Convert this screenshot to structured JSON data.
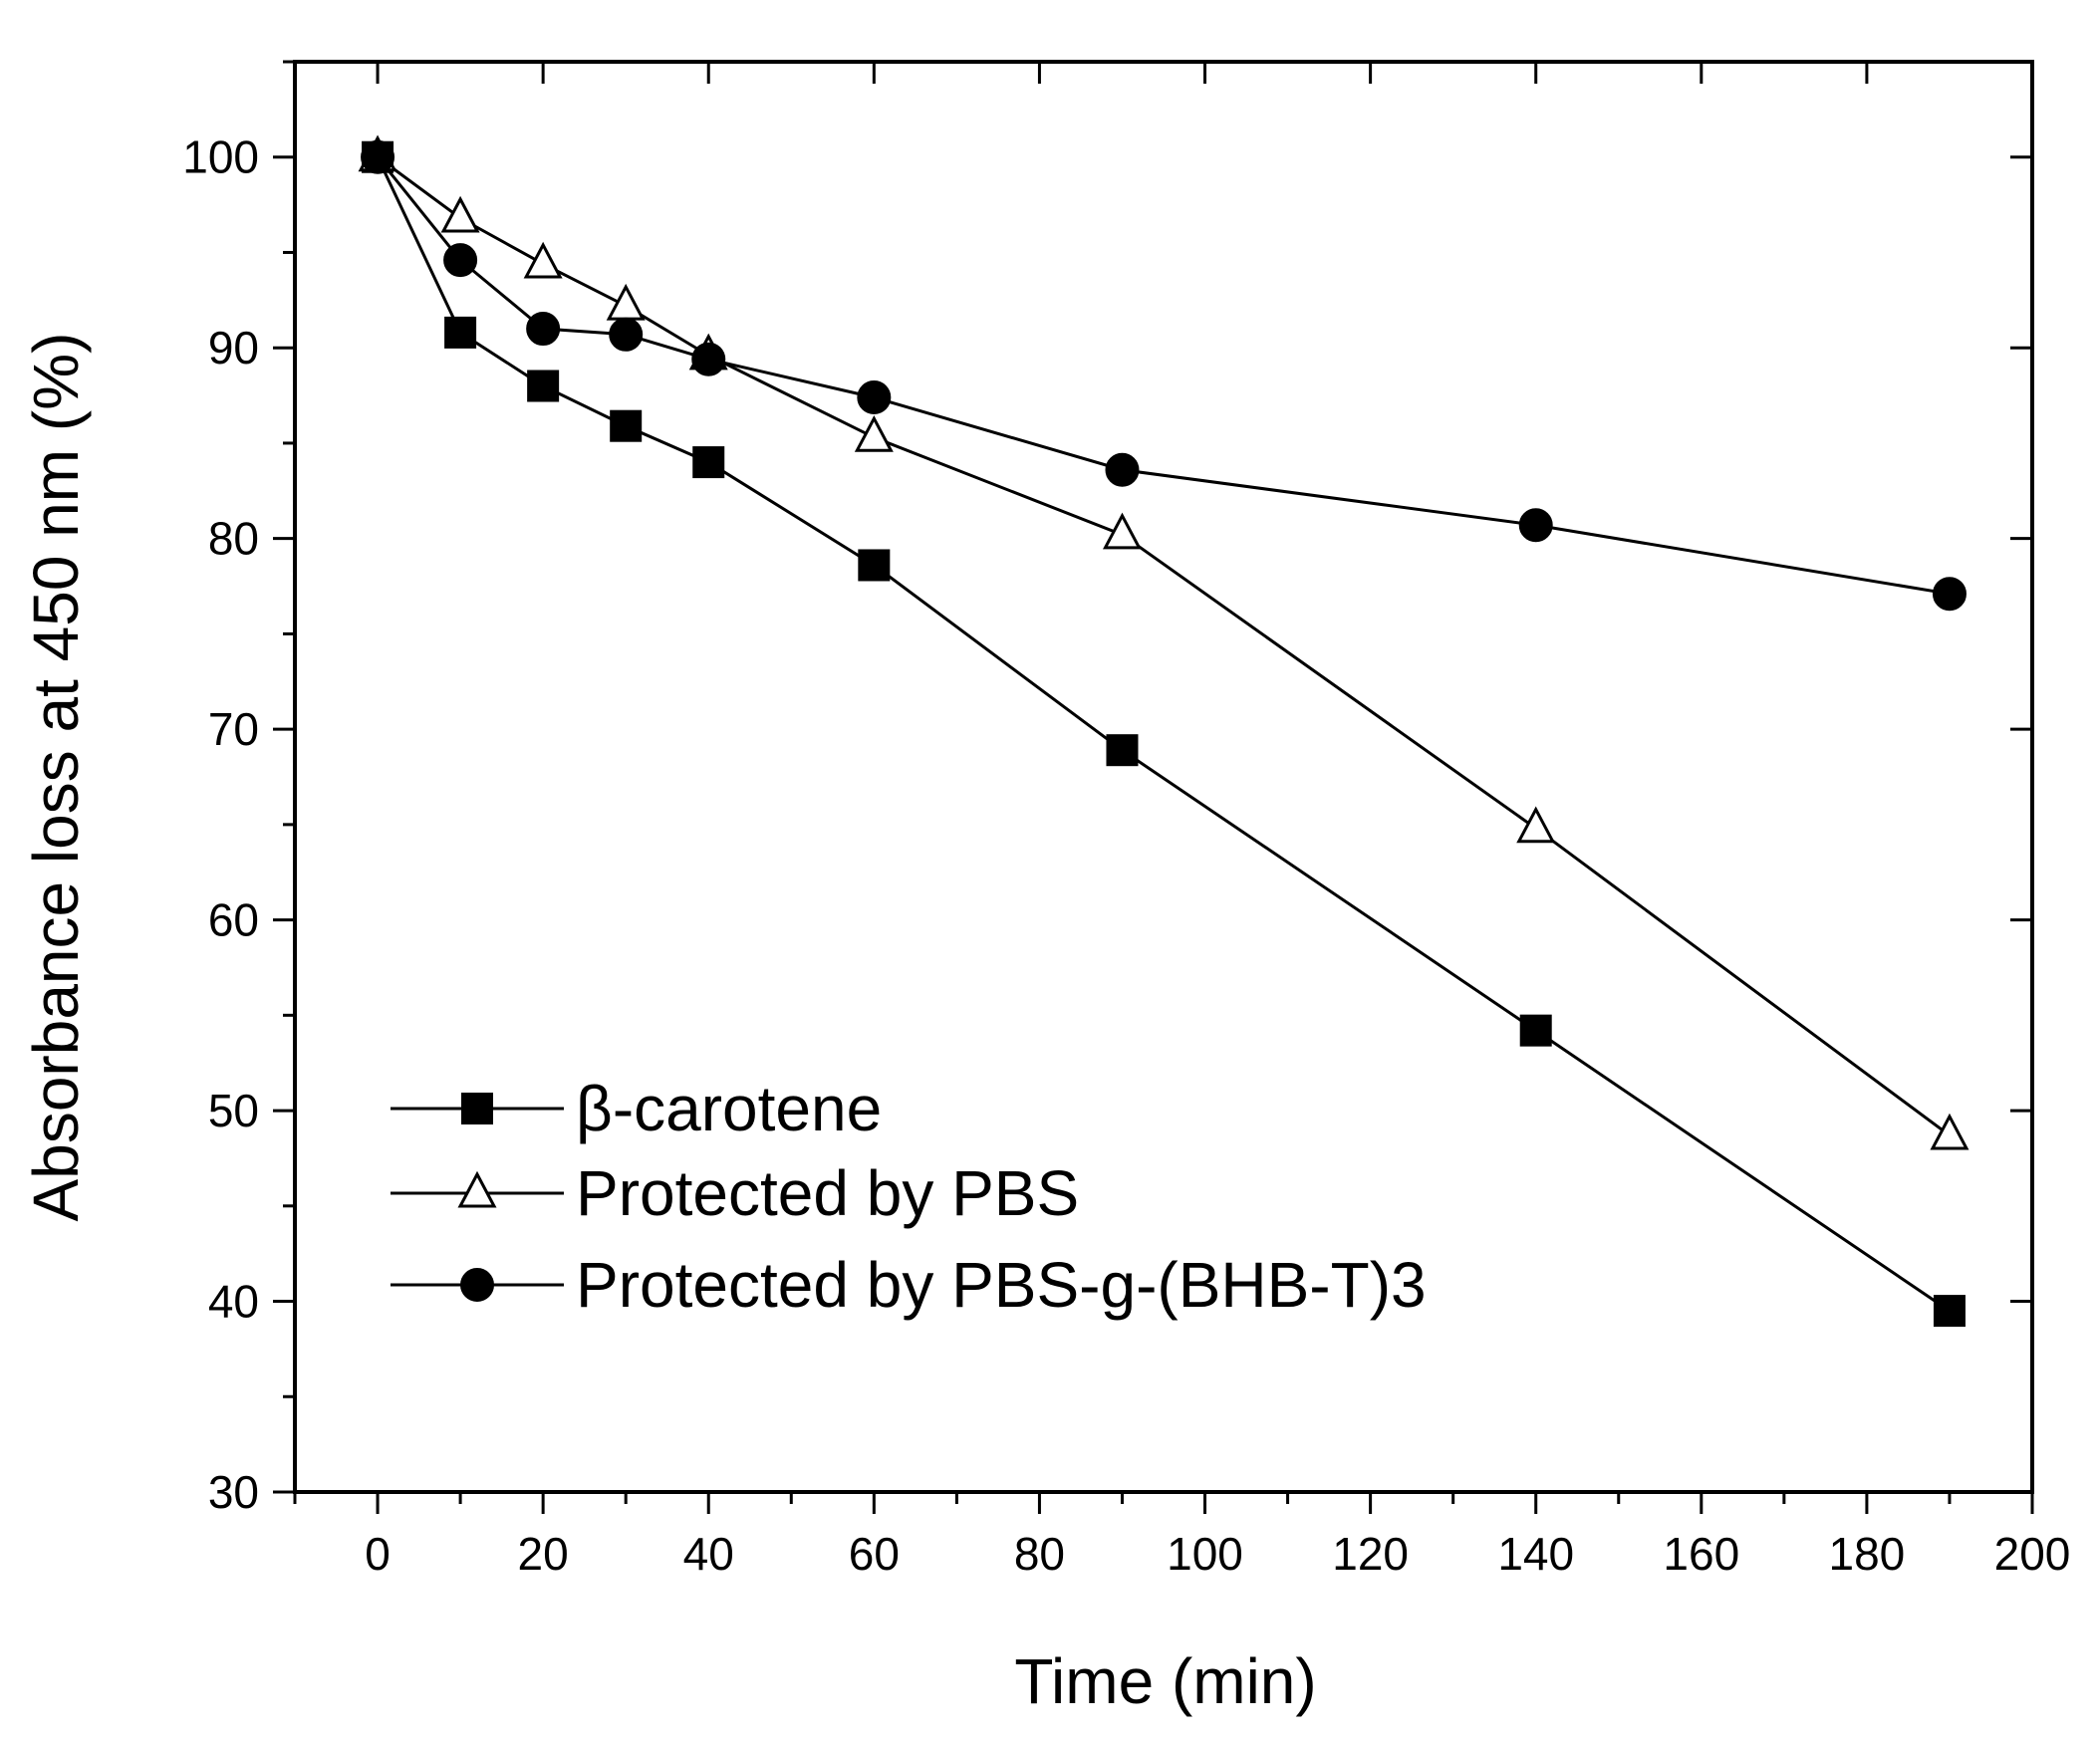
{
  "chart_data": {
    "type": "line",
    "title": "",
    "xlabel": "Time (min)",
    "ylabel": "Absorbance loss  at 450 nm (%)",
    "xlim": [
      -10,
      200
    ],
    "ylim": [
      30,
      105
    ],
    "xticks": [
      0,
      20,
      40,
      60,
      80,
      100,
      120,
      140,
      160,
      180,
      200
    ],
    "xtick_labels": [
      "0",
      "20",
      "40",
      "60",
      "80",
      "100",
      "120",
      "140",
      "160",
      "180",
      "200"
    ],
    "yticks": [
      30,
      40,
      50,
      60,
      70,
      80,
      90,
      100
    ],
    "ytick_labels": [
      "30",
      "40",
      "50",
      "60",
      "70",
      "80",
      "90",
      "100"
    ],
    "grid": false,
    "legend_position": "bottom-left",
    "series": [
      {
        "name": "β-carotene",
        "marker": "filled-square",
        "x": [
          0,
          10,
          20,
          30,
          40,
          60,
          90,
          140,
          190
        ],
        "values": [
          100,
          90.8,
          88,
          85.9,
          84,
          78.6,
          68.9,
          54.2,
          39.5
        ]
      },
      {
        "name": "Protected by PBS",
        "marker": "open-triangle",
        "x": [
          0,
          10,
          20,
          30,
          40,
          60,
          90,
          140,
          190
        ],
        "values": [
          100,
          96.8,
          94.4,
          92.2,
          89.6,
          85.3,
          80.2,
          64.8,
          48.7
        ]
      },
      {
        "name": "Protected by PBS-g-(BHB-T)3",
        "marker": "filled-circle",
        "x": [
          0,
          10,
          20,
          30,
          40,
          60,
          90,
          140,
          190
        ],
        "values": [
          100,
          94.6,
          91,
          90.7,
          89.4,
          87.4,
          83.6,
          80.7,
          77.1
        ]
      }
    ]
  }
}
